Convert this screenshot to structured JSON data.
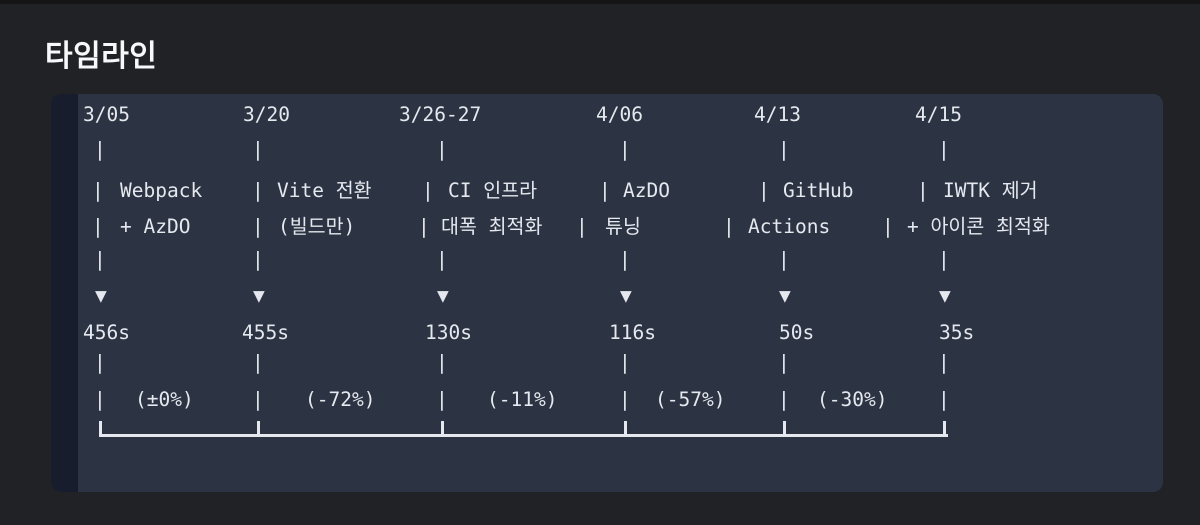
{
  "page": {
    "title": "타임라인"
  },
  "timeline": {
    "glyphs": {
      "pipe": "|",
      "arrow_down": "▼"
    },
    "columns": [
      {
        "date": "3/05",
        "label1": "Webpack",
        "label2": "+ AzDO",
        "time": "456s",
        "delta": "(±0%)"
      },
      {
        "date": "3/20",
        "label1": "Vite 전환",
        "label2": "(빌드만)",
        "time": "455s",
        "delta": "(-72%)"
      },
      {
        "date": "3/26-27",
        "label1": "CI 인프라",
        "label2": "대폭 최적화",
        "time": "130s",
        "delta": "(-11%)"
      },
      {
        "date": "4/06",
        "label1": "AzDO",
        "label2": "튜닝",
        "time": "116s",
        "delta": "(-57%)"
      },
      {
        "date": "4/13",
        "label1": "GitHub",
        "label2": "Actions",
        "time": "50s",
        "delta": "(-30%)"
      },
      {
        "date": "4/15",
        "label1": "IWTK 제거",
        "label2": "+ 아이콘 최적화",
        "time": "35s",
        "delta": ""
      }
    ],
    "colors": {
      "page_background": "#212226",
      "block_background": "#2c3342",
      "gutter_background": "#171d2c",
      "text": "#e5e9ef",
      "title_text": "#f7f8f9"
    }
  }
}
